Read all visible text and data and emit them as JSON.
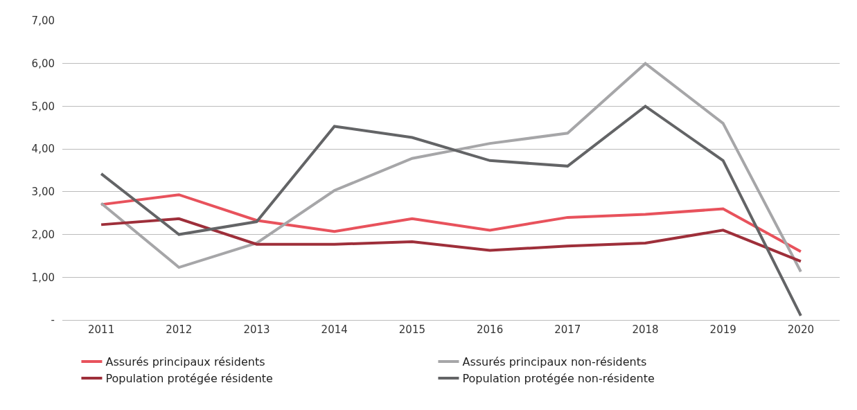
{
  "chart_data": {
    "type": "line",
    "categories": [
      "2011",
      "2012",
      "2013",
      "2014",
      "2015",
      "2016",
      "2017",
      "2018",
      "2019",
      "2020"
    ],
    "series": [
      {
        "name": "Assurés principaux résidents",
        "color": "#e8525c",
        "values": [
          2.7,
          2.93,
          2.33,
          2.07,
          2.37,
          2.1,
          2.4,
          2.47,
          2.6,
          1.6
        ]
      },
      {
        "name": "Assurés principaux non-résidents",
        "color": "#a6a6a8",
        "values": [
          2.73,
          1.23,
          1.8,
          3.03,
          3.78,
          4.13,
          4.37,
          6.0,
          4.6,
          1.13
        ]
      },
      {
        "name": "Population protégée résidente",
        "color": "#9e2f3a",
        "values": [
          2.23,
          2.37,
          1.77,
          1.77,
          1.83,
          1.63,
          1.73,
          1.8,
          2.1,
          1.37
        ]
      },
      {
        "name": "Population protégée non-résidente",
        "color": "#636466",
        "values": [
          3.42,
          2.0,
          2.3,
          4.53,
          4.27,
          3.73,
          3.6,
          5.0,
          3.73,
          0.1
        ]
      }
    ],
    "ylim": [
      0,
      7
    ],
    "yticks": [
      {
        "value": 0,
        "label": "-"
      },
      {
        "value": 1,
        "label": "1,00"
      },
      {
        "value": 2,
        "label": "2,00"
      },
      {
        "value": 3,
        "label": "3,00"
      },
      {
        "value": 4,
        "label": "4,00"
      },
      {
        "value": 5,
        "label": "5,00"
      },
      {
        "value": 6,
        "label": "6,00"
      },
      {
        "value": 7,
        "label": "7,00"
      }
    ],
    "grid": "y",
    "legend": "bottom",
    "marker": "none",
    "line_style": "solid"
  }
}
